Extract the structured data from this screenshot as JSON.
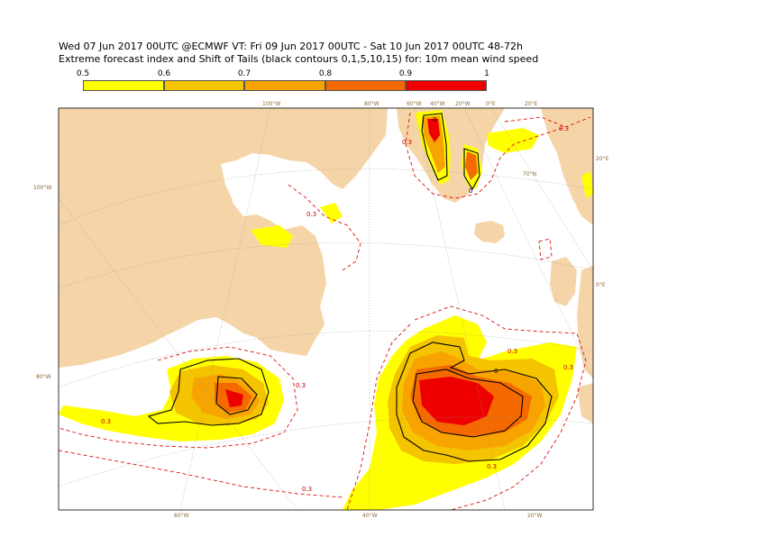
{
  "title": {
    "line1": "Wed 07 Jun 2017 00UTC @ECMWF VT: Fri 09 Jun 2017 00UTC - Sat 10 Jun 2017 00UTC  48-72h",
    "line2": "Extreme forecast index and Shift of Tails (black contours 0,1,5,10,15) for: 10m mean wind speed"
  },
  "legend": {
    "ticks": [
      "0.5",
      "0.6",
      "0.7",
      "0.8",
      "0.9",
      "1"
    ],
    "colors": [
      "#ffff00",
      "#f5c400",
      "#f7a400",
      "#f46a00",
      "#ee0000"
    ]
  },
  "map": {
    "land_color": "#f5d5a8",
    "sea_color": "#ffffff",
    "graticule_labels": {
      "top": [
        "100°W",
        "80°W",
        "60°W",
        "40°W",
        "20°W",
        "0°E",
        "20°E"
      ],
      "left": [
        "100°W",
        "80°W"
      ],
      "right": [
        "20°E",
        "70°N",
        "0°E"
      ],
      "bottom": [
        "60°W",
        "40°W",
        "20°W"
      ]
    },
    "contour_labels": [
      "0.3",
      "0.3",
      "0.3",
      "0.3",
      "0.3",
      "0.3",
      "0.3",
      "0.3",
      "0.3"
    ],
    "zero_labels": [
      "0",
      "0",
      "0"
    ]
  }
}
